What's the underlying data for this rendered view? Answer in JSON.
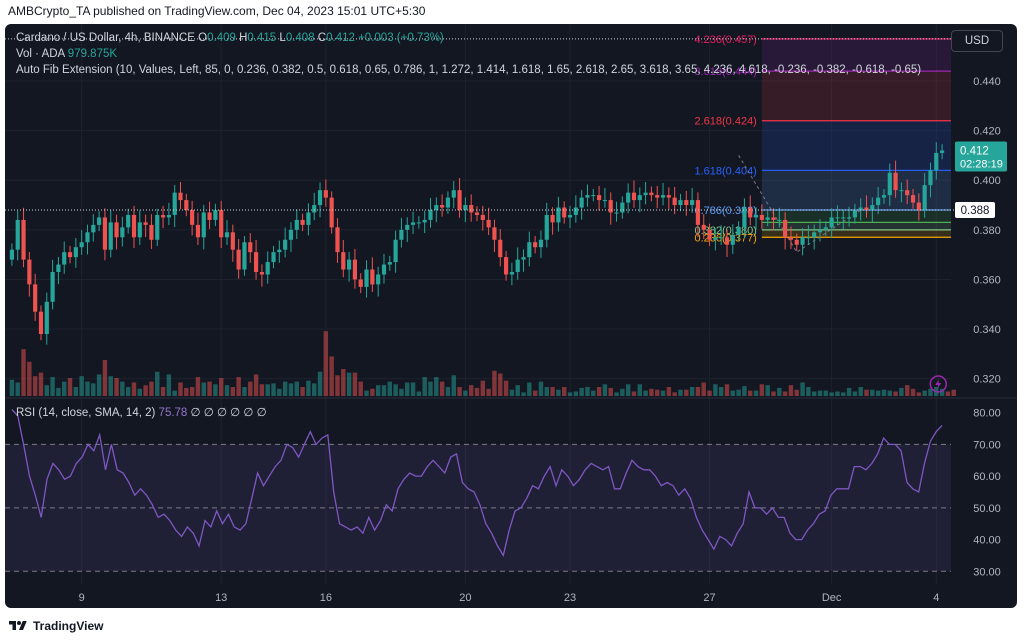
{
  "header": {
    "text": "AMBCrypto_TA published on TradingView.com, Dec 04, 2023 15:01 UTC+5:30"
  },
  "legend": {
    "symbol": "Cardano / US Dollar, 4h, BINANCE",
    "o_label": "O",
    "o_value": "0.409",
    "h_label": "H",
    "h_value": "0.415",
    "l_label": "L",
    "l_value": "0.408",
    "c_label": "C",
    "c_value": "0.412",
    "change": "+0.003 (+0.73%)",
    "vol_label": "Vol · ADA",
    "vol_value": "979.875K",
    "fib_indicator": "Auto Fib Extension (10, Values, Left, 85, 0, 0.236, 0.382, 0.5, 0.618, 0.65, 0.786, 1, 1.272, 1.414, 1.618, 1.65, 2.618, 2.65, 3.618, 3.65, 4.236, 4.618, -0.236, -0.382, -0.618, -0.65)"
  },
  "currency_button": "USD",
  "rsi_legend": {
    "label": "RSI (14, close, SMA, 14, 2)",
    "value": "75.78",
    "placeholders": "∅ ∅ ∅ ∅ ∅ ∅"
  },
  "footer": {
    "brand": "TradingView"
  },
  "colors": {
    "up": "#26a69a",
    "down": "#ef5350",
    "rsi": "#7e57c2",
    "background": "#131722"
  },
  "chart_data": [
    {
      "type": "candlestick",
      "title": "Cardano / US Dollar, 4h, BINANCE",
      "ylim": [
        0.313,
        0.463
      ],
      "y_ticks": [
        "0.320",
        "0.340",
        "0.360",
        "0.380",
        "0.400",
        "0.420",
        "0.440"
      ],
      "x_ticks": [
        {
          "label": "9",
          "index": 12
        },
        {
          "label": "13",
          "index": 36
        },
        {
          "label": "16",
          "index": 54
        },
        {
          "label": "20",
          "index": 78
        },
        {
          "label": "23",
          "index": 96
        },
        {
          "label": "27",
          "index": 120
        },
        {
          "label": "Dec",
          "index": 141
        },
        {
          "label": "4",
          "index": 159
        }
      ],
      "last_price": "0.412",
      "countdown": "02:28:19",
      "price_labels": [
        {
          "value": 0.457,
          "label": "0.457"
        },
        {
          "value": 0.388,
          "label": "0.388"
        }
      ],
      "fib_levels": [
        {
          "ratio": "4.236",
          "price": 0.457,
          "label": "4.236(0.457)",
          "color": "#e91e63"
        },
        {
          "ratio": "3.618",
          "price": 0.444,
          "label": "3.618(0.444)",
          "color": "#9c27b0"
        },
        {
          "ratio": "2.618",
          "price": 0.424,
          "label": "2.618(0.424)",
          "color": "#f23645"
        },
        {
          "ratio": "1.618",
          "price": 0.404,
          "label": "1.618(0.404)",
          "color": "#2962ff"
        },
        {
          "ratio": "0.786",
          "price": 0.388,
          "label": "0.786(0.388)",
          "color": "#5b9cf6"
        },
        {
          "ratio": "0.5",
          "price": 0.383,
          "label": "",
          "color": "#4caf50"
        },
        {
          "ratio": "0.382",
          "price": 0.38,
          "label": "0.382(0.380)",
          "color": "#81c784"
        },
        {
          "ratio": "0.236",
          "price": 0.377,
          "label": "0.236(0.377)",
          "color": "#f7a600"
        }
      ],
      "fib_start_index": 129,
      "pivot_prices": [
        0.41,
        0.371,
        0.388
      ],
      "closes": [
        0.372,
        0.384,
        0.368,
        0.358,
        0.347,
        0.338,
        0.351,
        0.363,
        0.366,
        0.371,
        0.369,
        0.373,
        0.375,
        0.379,
        0.382,
        0.385,
        0.372,
        0.383,
        0.377,
        0.381,
        0.386,
        0.377,
        0.383,
        0.382,
        0.376,
        0.386,
        0.385,
        0.386,
        0.395,
        0.392,
        0.388,
        0.382,
        0.377,
        0.387,
        0.384,
        0.388,
        0.377,
        0.379,
        0.372,
        0.364,
        0.375,
        0.371,
        0.363,
        0.362,
        0.367,
        0.371,
        0.372,
        0.376,
        0.38,
        0.384,
        0.382,
        0.387,
        0.39,
        0.396,
        0.393,
        0.381,
        0.371,
        0.364,
        0.368,
        0.36,
        0.357,
        0.364,
        0.358,
        0.362,
        0.366,
        0.367,
        0.376,
        0.38,
        0.382,
        0.383,
        0.383,
        0.384,
        0.388,
        0.39,
        0.389,
        0.393,
        0.396,
        0.388,
        0.39,
        0.387,
        0.386,
        0.384,
        0.381,
        0.376,
        0.369,
        0.362,
        0.363,
        0.368,
        0.369,
        0.375,
        0.373,
        0.376,
        0.386,
        0.383,
        0.389,
        0.385,
        0.386,
        0.389,
        0.393,
        0.394,
        0.394,
        0.392,
        0.392,
        0.387,
        0.387,
        0.391,
        0.395,
        0.392,
        0.394,
        0.395,
        0.394,
        0.393,
        0.394,
        0.393,
        0.39,
        0.392,
        0.39,
        0.392,
        0.382,
        0.38,
        0.376,
        0.377,
        0.377,
        0.374,
        0.378,
        0.381,
        0.389,
        0.385,
        0.386,
        0.384,
        0.385,
        0.384,
        0.384,
        0.377,
        0.376,
        0.374,
        0.377,
        0.377,
        0.379,
        0.38,
        0.381,
        0.385,
        0.385,
        0.385,
        0.385,
        0.388,
        0.389,
        0.388,
        0.39,
        0.393,
        0.394,
        0.403,
        0.396,
        0.396,
        0.394,
        0.391,
        0.388,
        0.398,
        0.404,
        0.411,
        0.412
      ],
      "volume_scale": [
        0.18,
        0.15,
        0.52,
        0.38,
        0.22,
        0.26,
        0.12,
        0.21,
        0.09,
        0.16,
        0.2,
        0.1,
        0.22,
        0.16,
        0.14,
        0.24,
        0.4,
        0.22,
        0.2,
        0.16,
        0.1,
        0.15,
        0.08,
        0.12,
        0.16,
        0.27,
        0.1,
        0.24,
        0.06,
        0.15,
        0.09,
        0.1,
        0.21,
        0.15,
        0.16,
        0.13,
        0.2,
        0.12,
        0.1,
        0.21,
        0.1,
        0.16,
        0.24,
        0.13,
        0.13,
        0.14,
        0.08,
        0.16,
        0.14,
        0.16,
        0.1,
        0.17,
        0.14,
        0.27,
        0.72,
        0.44,
        0.23,
        0.3,
        0.26,
        0.26,
        0.16,
        0.06,
        0.08,
        0.12,
        0.12,
        0.16,
        0.13,
        0.08,
        0.15,
        0.15,
        0.05,
        0.21,
        0.16,
        0.21,
        0.16,
        0.1,
        0.23,
        0.1,
        0.06,
        0.12,
        0.09,
        0.17,
        0.08,
        0.28,
        0.25,
        0.17,
        0.07,
        0.12,
        0.04,
        0.15,
        0.06,
        0.16,
        0.1,
        0.1,
        0.07,
        0.1,
        0.04,
        0.05,
        0.09,
        0.1,
        0.06,
        0.1,
        0.13,
        0.09,
        0.04,
        0.08,
        0.13,
        0.05,
        0.13,
        0.06,
        0.08,
        0.07,
        0.06,
        0.1,
        0.04,
        0.07,
        0.07,
        0.1,
        0.1,
        0.15,
        0.06,
        0.13,
        0.1,
        0.13,
        0.06,
        0.07,
        0.11,
        0.06,
        0.06,
        0.13,
        0.12,
        0.05,
        0.09,
        0.05,
        0.12,
        0.07,
        0.15,
        0.1,
        0.05,
        0.06,
        0.06,
        0.04,
        0.05,
        0.04,
        0.09,
        0.05,
        0.1,
        0.07,
        0.07,
        0.06,
        0.07,
        0.06,
        0.05,
        0.09,
        0.12,
        0.08,
        0.04,
        0.06,
        0.08,
        0.1,
        0.08,
        0.05,
        0.07
      ]
    },
    {
      "type": "line",
      "title": "RSI (14, close, SMA, 14, 2)",
      "ylim": [
        26,
        84
      ],
      "y_ticks": [
        "30.00",
        "40.00",
        "50.00",
        "60.00",
        "70.00",
        "80.00"
      ],
      "bands": [
        30,
        50,
        70
      ],
      "series": [
        {
          "name": "RSI",
          "values": [
            81,
            79,
            70,
            60,
            54,
            47,
            59,
            64,
            62,
            59,
            60,
            64,
            66,
            70,
            68,
            73,
            62,
            70,
            62,
            61,
            58,
            54,
            56,
            54,
            51,
            47,
            48,
            46,
            43,
            41,
            44,
            42,
            38,
            46,
            44,
            49,
            45,
            48,
            44,
            43,
            45,
            53,
            61,
            57,
            60,
            63,
            65,
            70,
            69,
            66,
            70,
            74,
            70,
            72,
            73,
            55,
            45,
            44,
            43,
            44,
            42,
            47,
            43,
            46,
            51,
            49,
            56,
            59,
            61,
            60,
            60,
            63,
            65,
            63,
            61,
            66,
            67,
            58,
            56,
            55,
            51,
            45,
            42,
            38,
            35,
            43,
            49,
            50,
            53,
            57,
            56,
            60,
            63,
            57,
            62,
            60,
            57,
            59,
            62,
            64,
            63,
            62,
            63,
            56,
            56,
            61,
            65,
            63,
            62,
            62,
            60,
            57,
            58,
            57,
            54,
            56,
            53,
            47,
            43,
            40,
            37,
            41,
            40,
            38,
            42,
            45,
            55,
            50,
            50,
            48,
            50,
            47,
            47,
            42,
            40,
            40,
            43,
            45,
            48,
            49,
            54,
            56,
            56,
            56,
            63,
            63,
            62,
            64,
            67,
            72,
            70,
            70,
            68,
            58,
            56,
            55,
            64,
            71,
            74,
            76
          ]
        }
      ]
    }
  ]
}
